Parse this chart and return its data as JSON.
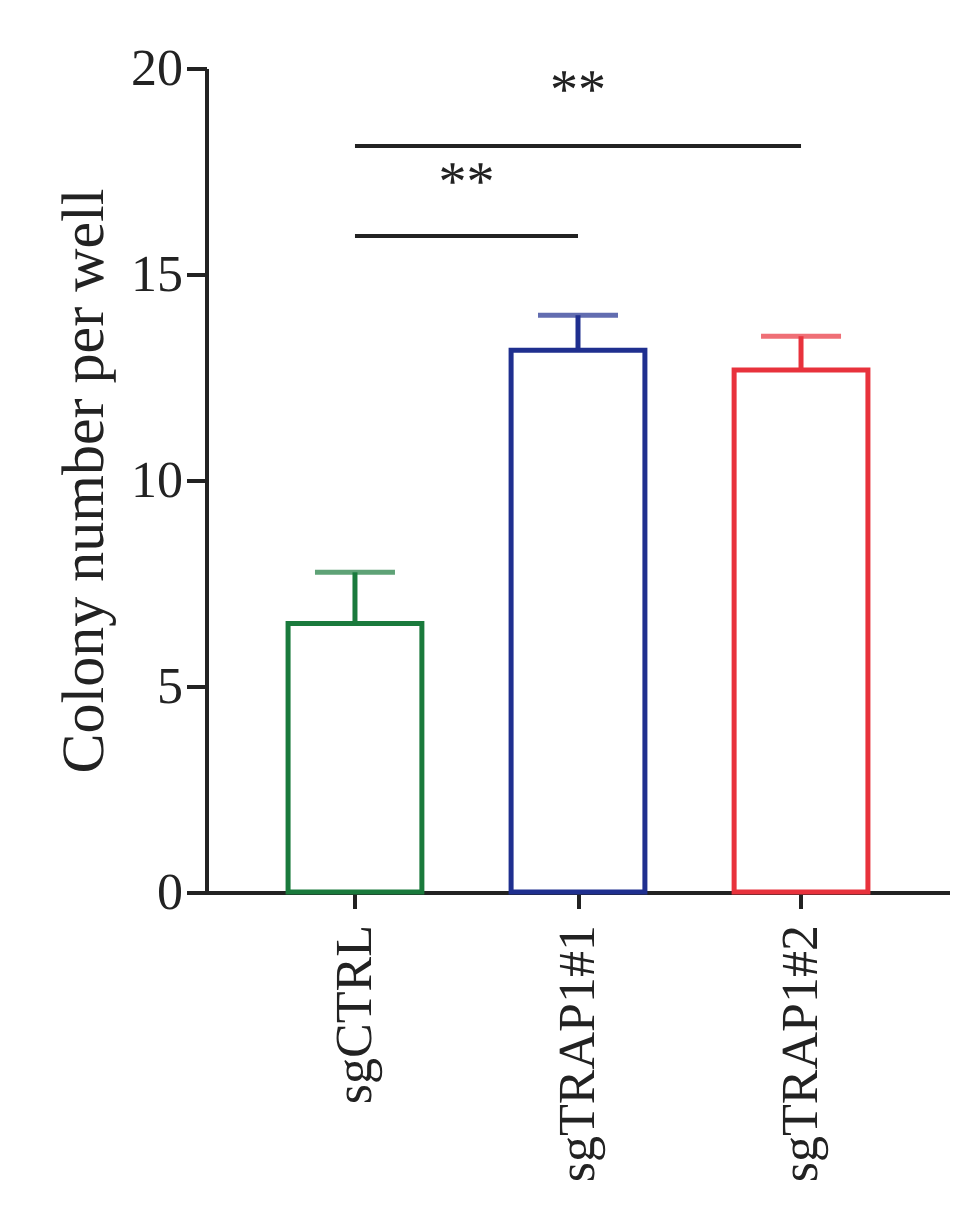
{
  "chart_data": {
    "type": "bar",
    "ylabel": "Colony number per well",
    "categories": [
      "sgCTRL",
      "sgTRAP1#1",
      "sgTRAP1#2"
    ],
    "values": [
      6.52,
      13.15,
      12.67
    ],
    "errors": [
      [
        6.52,
        7.76
      ],
      [
        13.15,
        14.0
      ],
      [
        12.67,
        13.49
      ]
    ],
    "colors": [
      "#1a7a3c",
      "#1f2f8f",
      "#e8323c"
    ],
    "ylim": [
      0,
      20
    ],
    "yticks": [
      0,
      5,
      10,
      15,
      20
    ],
    "grid": false,
    "annotations": [
      "**",
      "**"
    ]
  }
}
